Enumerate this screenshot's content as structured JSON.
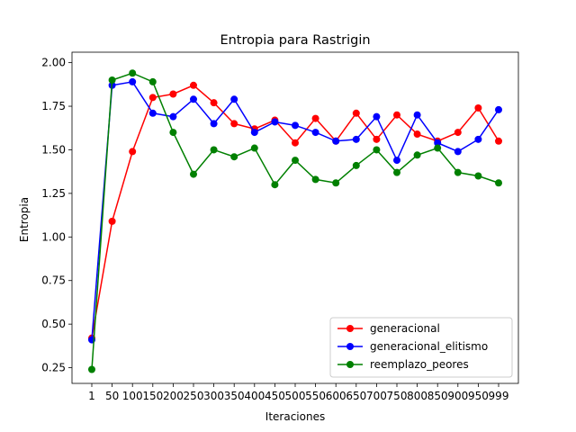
{
  "chart_data": {
    "type": "line",
    "title": "Entropia para Rastrigin",
    "xlabel": "Iteraciones",
    "ylabel": "Entropia",
    "ylim": [
      0.16,
      2.06
    ],
    "y_ticks": [
      "0.25",
      "0.50",
      "0.75",
      "1.00",
      "1.25",
      "1.50",
      "1.75",
      "2.00"
    ],
    "y_tick_values": [
      0.25,
      0.5,
      0.75,
      1.0,
      1.25,
      1.5,
      1.75,
      2.0
    ],
    "categories": [
      "1",
      "50",
      "100",
      "150",
      "200",
      "250",
      "300",
      "350",
      "400",
      "450",
      "500",
      "550",
      "600",
      "650",
      "700",
      "750",
      "800",
      "850",
      "900",
      "950",
      "999"
    ],
    "grid": false,
    "legend_position": "lower-right",
    "series": [
      {
        "name": "generacional",
        "color": "#ff0000",
        "values": [
          0.42,
          1.09,
          1.49,
          1.8,
          1.82,
          1.87,
          1.77,
          1.65,
          1.62,
          1.67,
          1.54,
          1.68,
          1.55,
          1.71,
          1.56,
          1.7,
          1.59,
          1.55,
          1.6,
          1.74,
          1.55
        ]
      },
      {
        "name": "generacional_elitismo",
        "color": "#0000ff",
        "values": [
          0.41,
          1.87,
          1.89,
          1.71,
          1.69,
          1.79,
          1.65,
          1.79,
          1.6,
          1.66,
          1.64,
          1.6,
          1.55,
          1.56,
          1.69,
          1.44,
          1.7,
          1.54,
          1.49,
          1.56,
          1.73
        ]
      },
      {
        "name": "reemplazo_peores",
        "color": "#008000",
        "values": [
          0.24,
          1.9,
          1.94,
          1.89,
          1.6,
          1.36,
          1.5,
          1.46,
          1.51,
          1.3,
          1.44,
          1.33,
          1.31,
          1.41,
          1.5,
          1.37,
          1.47,
          1.51,
          1.37,
          1.35,
          1.31
        ]
      }
    ]
  }
}
